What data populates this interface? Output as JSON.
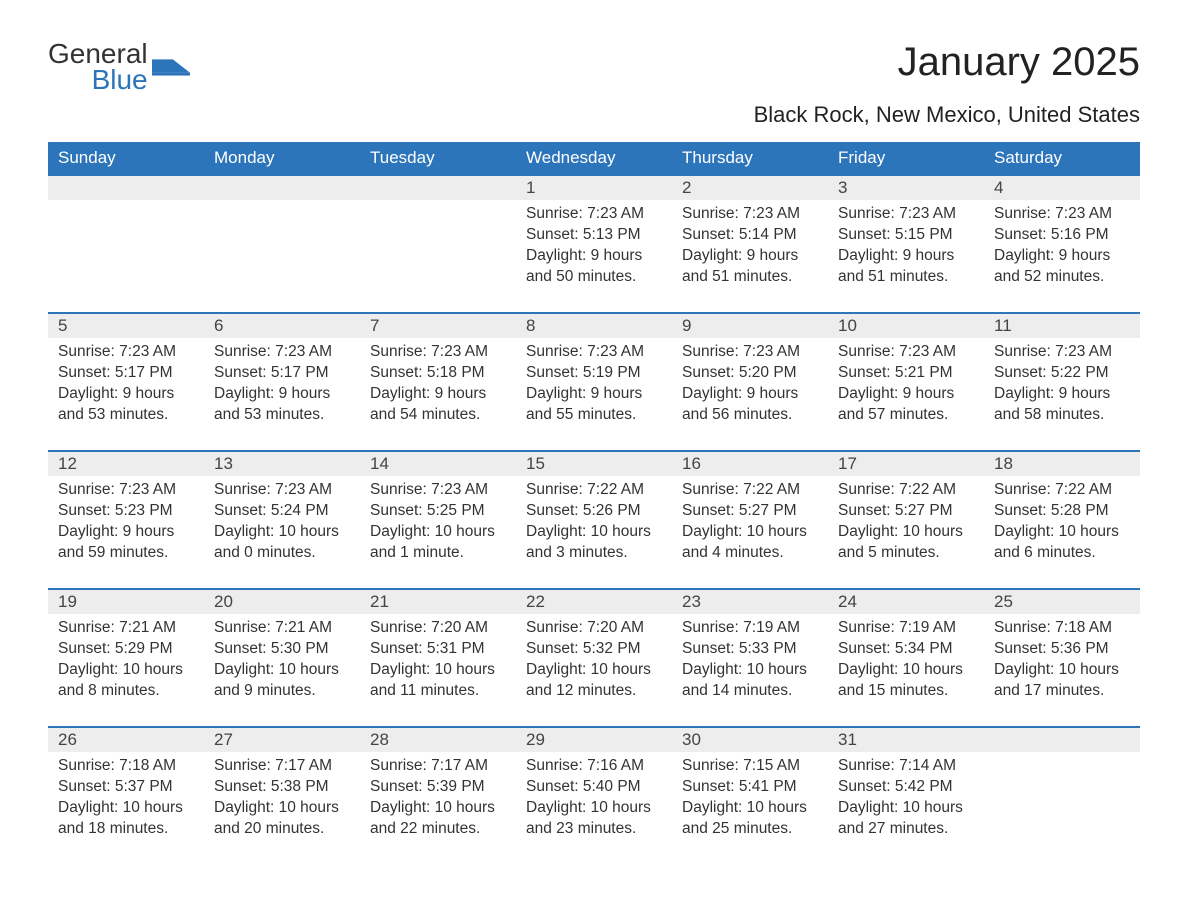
{
  "brand": {
    "name_part1": "General",
    "name_part2": "Blue",
    "logo_color": "#2d75bb"
  },
  "title": "January 2025",
  "location": "Black Rock, New Mexico, United States",
  "colors": {
    "header_bg": "#2d75bb",
    "header_text": "#ffffff",
    "daynum_bg": "#ededed",
    "row_border": "#2d75bb",
    "body_text": "#333333",
    "page_bg": "#ffffff"
  },
  "typography": {
    "title_fontsize": 40,
    "location_fontsize": 22,
    "header_fontsize": 17,
    "daynum_fontsize": 17,
    "body_fontsize": 15.5
  },
  "layout": {
    "type": "calendar-table",
    "columns": 7,
    "rows": 5
  },
  "weekdays": [
    "Sunday",
    "Monday",
    "Tuesday",
    "Wednesday",
    "Thursday",
    "Friday",
    "Saturday"
  ],
  "weeks": [
    [
      null,
      null,
      null,
      {
        "day": "1",
        "sunrise": "Sunrise: 7:23 AM",
        "sunset": "Sunset: 5:13 PM",
        "daylight": "Daylight: 9 hours and 50 minutes."
      },
      {
        "day": "2",
        "sunrise": "Sunrise: 7:23 AM",
        "sunset": "Sunset: 5:14 PM",
        "daylight": "Daylight: 9 hours and 51 minutes."
      },
      {
        "day": "3",
        "sunrise": "Sunrise: 7:23 AM",
        "sunset": "Sunset: 5:15 PM",
        "daylight": "Daylight: 9 hours and 51 minutes."
      },
      {
        "day": "4",
        "sunrise": "Sunrise: 7:23 AM",
        "sunset": "Sunset: 5:16 PM",
        "daylight": "Daylight: 9 hours and 52 minutes."
      }
    ],
    [
      {
        "day": "5",
        "sunrise": "Sunrise: 7:23 AM",
        "sunset": "Sunset: 5:17 PM",
        "daylight": "Daylight: 9 hours and 53 minutes."
      },
      {
        "day": "6",
        "sunrise": "Sunrise: 7:23 AM",
        "sunset": "Sunset: 5:17 PM",
        "daylight": "Daylight: 9 hours and 53 minutes."
      },
      {
        "day": "7",
        "sunrise": "Sunrise: 7:23 AM",
        "sunset": "Sunset: 5:18 PM",
        "daylight": "Daylight: 9 hours and 54 minutes."
      },
      {
        "day": "8",
        "sunrise": "Sunrise: 7:23 AM",
        "sunset": "Sunset: 5:19 PM",
        "daylight": "Daylight: 9 hours and 55 minutes."
      },
      {
        "day": "9",
        "sunrise": "Sunrise: 7:23 AM",
        "sunset": "Sunset: 5:20 PM",
        "daylight": "Daylight: 9 hours and 56 minutes."
      },
      {
        "day": "10",
        "sunrise": "Sunrise: 7:23 AM",
        "sunset": "Sunset: 5:21 PM",
        "daylight": "Daylight: 9 hours and 57 minutes."
      },
      {
        "day": "11",
        "sunrise": "Sunrise: 7:23 AM",
        "sunset": "Sunset: 5:22 PM",
        "daylight": "Daylight: 9 hours and 58 minutes."
      }
    ],
    [
      {
        "day": "12",
        "sunrise": "Sunrise: 7:23 AM",
        "sunset": "Sunset: 5:23 PM",
        "daylight": "Daylight: 9 hours and 59 minutes."
      },
      {
        "day": "13",
        "sunrise": "Sunrise: 7:23 AM",
        "sunset": "Sunset: 5:24 PM",
        "daylight": "Daylight: 10 hours and 0 minutes."
      },
      {
        "day": "14",
        "sunrise": "Sunrise: 7:23 AM",
        "sunset": "Sunset: 5:25 PM",
        "daylight": "Daylight: 10 hours and 1 minute."
      },
      {
        "day": "15",
        "sunrise": "Sunrise: 7:22 AM",
        "sunset": "Sunset: 5:26 PM",
        "daylight": "Daylight: 10 hours and 3 minutes."
      },
      {
        "day": "16",
        "sunrise": "Sunrise: 7:22 AM",
        "sunset": "Sunset: 5:27 PM",
        "daylight": "Daylight: 10 hours and 4 minutes."
      },
      {
        "day": "17",
        "sunrise": "Sunrise: 7:22 AM",
        "sunset": "Sunset: 5:27 PM",
        "daylight": "Daylight: 10 hours and 5 minutes."
      },
      {
        "day": "18",
        "sunrise": "Sunrise: 7:22 AM",
        "sunset": "Sunset: 5:28 PM",
        "daylight": "Daylight: 10 hours and 6 minutes."
      }
    ],
    [
      {
        "day": "19",
        "sunrise": "Sunrise: 7:21 AM",
        "sunset": "Sunset: 5:29 PM",
        "daylight": "Daylight: 10 hours and 8 minutes."
      },
      {
        "day": "20",
        "sunrise": "Sunrise: 7:21 AM",
        "sunset": "Sunset: 5:30 PM",
        "daylight": "Daylight: 10 hours and 9 minutes."
      },
      {
        "day": "21",
        "sunrise": "Sunrise: 7:20 AM",
        "sunset": "Sunset: 5:31 PM",
        "daylight": "Daylight: 10 hours and 11 minutes."
      },
      {
        "day": "22",
        "sunrise": "Sunrise: 7:20 AM",
        "sunset": "Sunset: 5:32 PM",
        "daylight": "Daylight: 10 hours and 12 minutes."
      },
      {
        "day": "23",
        "sunrise": "Sunrise: 7:19 AM",
        "sunset": "Sunset: 5:33 PM",
        "daylight": "Daylight: 10 hours and 14 minutes."
      },
      {
        "day": "24",
        "sunrise": "Sunrise: 7:19 AM",
        "sunset": "Sunset: 5:34 PM",
        "daylight": "Daylight: 10 hours and 15 minutes."
      },
      {
        "day": "25",
        "sunrise": "Sunrise: 7:18 AM",
        "sunset": "Sunset: 5:36 PM",
        "daylight": "Daylight: 10 hours and 17 minutes."
      }
    ],
    [
      {
        "day": "26",
        "sunrise": "Sunrise: 7:18 AM",
        "sunset": "Sunset: 5:37 PM",
        "daylight": "Daylight: 10 hours and 18 minutes."
      },
      {
        "day": "27",
        "sunrise": "Sunrise: 7:17 AM",
        "sunset": "Sunset: 5:38 PM",
        "daylight": "Daylight: 10 hours and 20 minutes."
      },
      {
        "day": "28",
        "sunrise": "Sunrise: 7:17 AM",
        "sunset": "Sunset: 5:39 PM",
        "daylight": "Daylight: 10 hours and 22 minutes."
      },
      {
        "day": "29",
        "sunrise": "Sunrise: 7:16 AM",
        "sunset": "Sunset: 5:40 PM",
        "daylight": "Daylight: 10 hours and 23 minutes."
      },
      {
        "day": "30",
        "sunrise": "Sunrise: 7:15 AM",
        "sunset": "Sunset: 5:41 PM",
        "daylight": "Daylight: 10 hours and 25 minutes."
      },
      {
        "day": "31",
        "sunrise": "Sunrise: 7:14 AM",
        "sunset": "Sunset: 5:42 PM",
        "daylight": "Daylight: 10 hours and 27 minutes."
      },
      null
    ]
  ]
}
